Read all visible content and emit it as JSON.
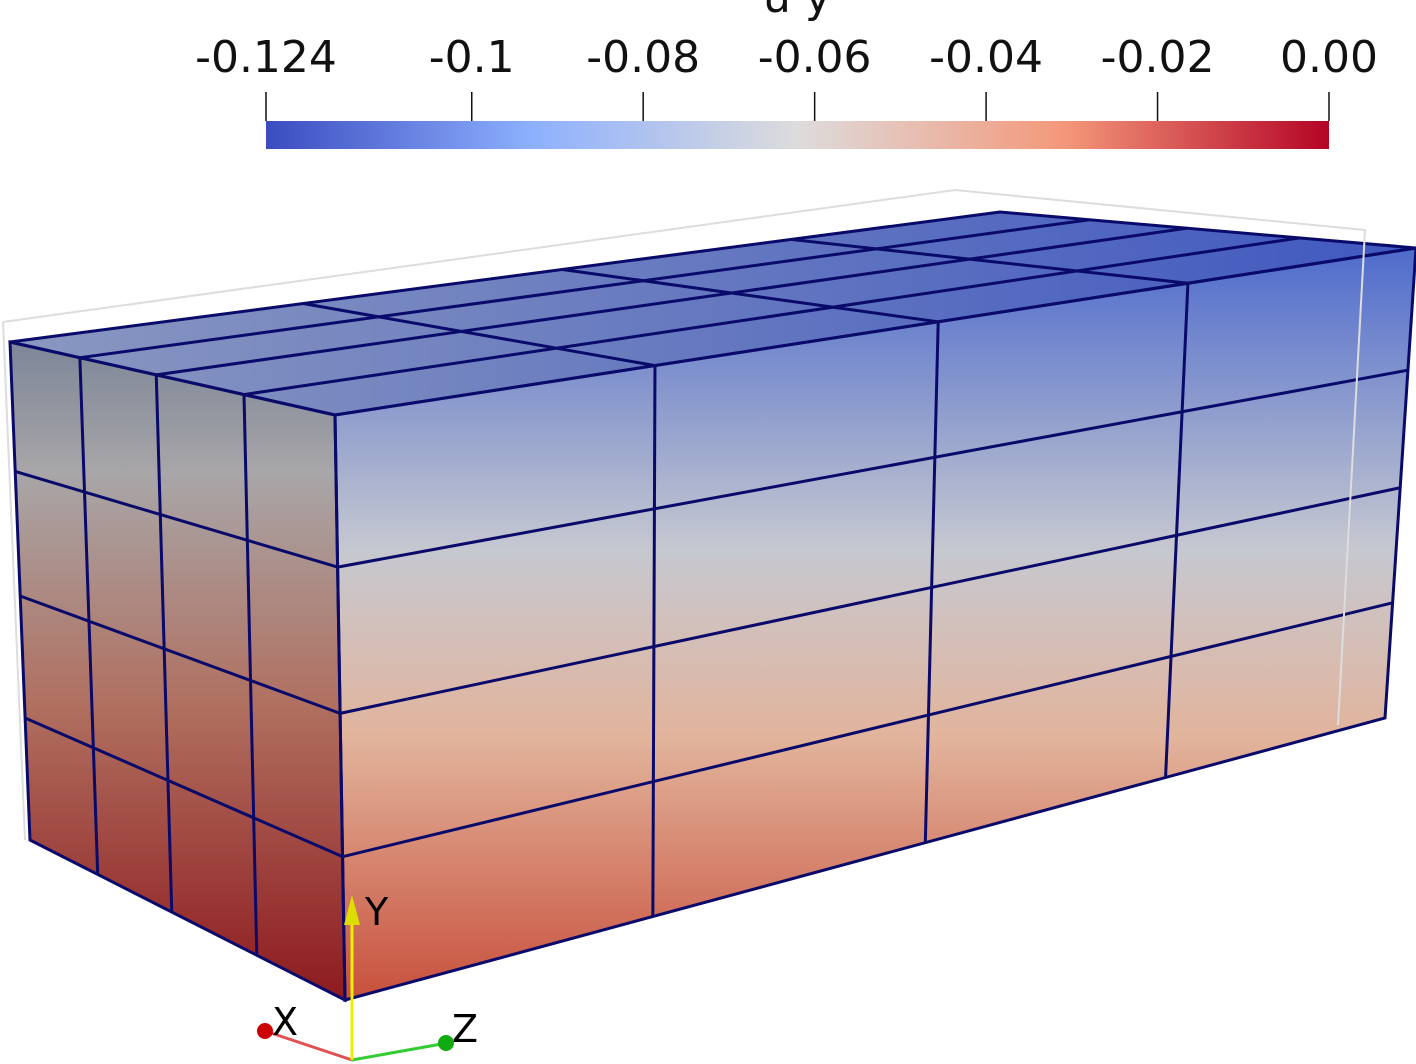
{
  "colorbar": {
    "title": "u y",
    "range": [
      -0.124,
      0
    ],
    "ticks": [
      -0.124,
      -0.1,
      -0.08,
      -0.06,
      -0.04,
      -0.02,
      {
        "value": 0,
        "label": "0.00"
      }
    ]
  },
  "axes": {
    "x": "X",
    "y": "Y",
    "z": "Z"
  }
}
